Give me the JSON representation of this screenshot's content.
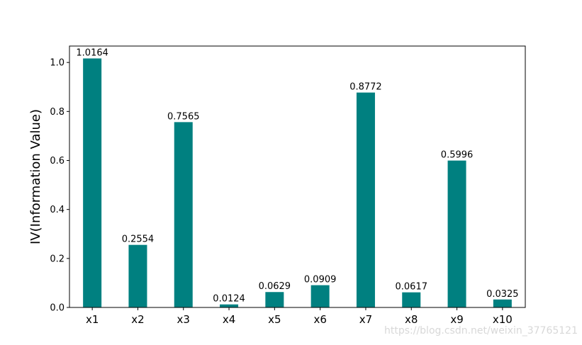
{
  "chart_data": {
    "type": "bar",
    "title": "",
    "xlabel": "",
    "ylabel": "IV(Information Value)",
    "categories": [
      "x1",
      "x2",
      "x3",
      "x4",
      "x5",
      "x6",
      "x7",
      "x8",
      "x9",
      "x10"
    ],
    "values": [
      1.0164,
      0.2554,
      0.7565,
      0.0124,
      0.0629,
      0.0909,
      0.8772,
      0.0617,
      0.5996,
      0.0325
    ],
    "data_labels": [
      "1.0164",
      "0.2554",
      "0.7565",
      "0.0124",
      "0.0629",
      "0.0909",
      "0.8772",
      "0.0617",
      "0.5996",
      "0.0325"
    ],
    "ylim": [
      0,
      1.067
    ],
    "yticks": [
      0.0,
      0.2,
      0.4,
      0.6,
      0.8,
      1.0
    ],
    "ytick_labels": [
      "0.0",
      "0.2",
      "0.4",
      "0.6",
      "0.8",
      "1.0"
    ],
    "bar_color": "#008080",
    "grid": false,
    "legend": "none"
  },
  "watermark": "https://blog.csdn.net/weixin_37765121"
}
